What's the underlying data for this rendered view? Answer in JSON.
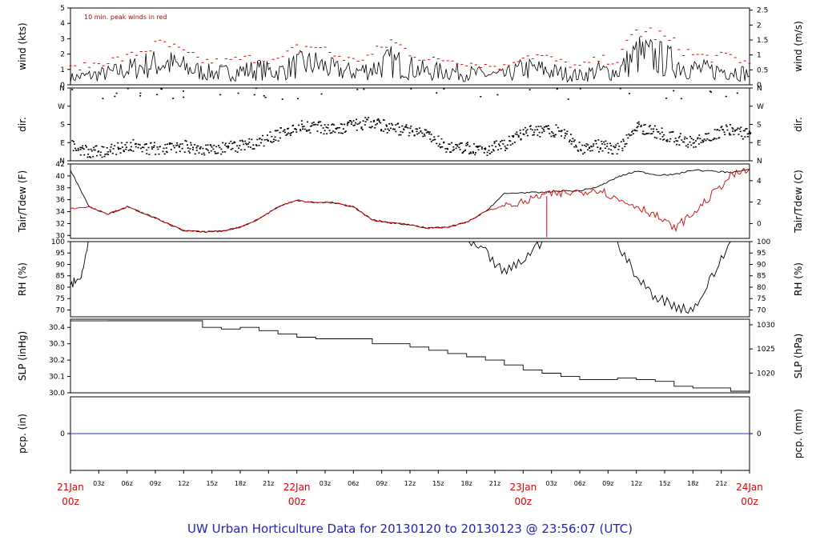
{
  "title": "UW Urban Horticulture Data for 20130120  to  20130123 @ 23:56:07  (UTC)",
  "colors": {
    "primary": "#000000",
    "peak": "#dd0000",
    "precip": "#2a2ad0",
    "title": "#2020c8",
    "date_label": "#e00000"
  },
  "x_axis": {
    "hours_ticks": [
      "03z",
      "06z",
      "09z",
      "12z",
      "15z",
      "18z",
      "21z",
      "03z",
      "06z",
      "09z",
      "12z",
      "15z",
      "18z",
      "21z",
      "03z",
      "06z",
      "09z",
      "12z",
      "15z",
      "18z",
      "21z"
    ],
    "date_labels": [
      {
        "day": "21Jan",
        "hour": "00z"
      },
      {
        "day": "22Jan",
        "hour": "00z"
      },
      {
        "day": "23Jan",
        "hour": "00z"
      },
      {
        "day": "24Jan",
        "hour": "00z"
      }
    ]
  },
  "chart_data": [
    {
      "type": "line",
      "name": "wind",
      "ylabel": "wind (kts)",
      "ylabel_right": "wind (m/s)",
      "ylim": [
        0,
        5
      ],
      "yticks": [
        "0",
        "1",
        "2",
        "3",
        "4",
        "5"
      ],
      "yticks_right": [
        "0",
        "0.5",
        "1",
        "1.5",
        "2",
        "2.5"
      ],
      "annotation": "10 min. peak winds in red",
      "x_hours": [
        0,
        2,
        4,
        6,
        8,
        10,
        12,
        14,
        16,
        18,
        20,
        22,
        24,
        26,
        28,
        30,
        32,
        34,
        36,
        38,
        40,
        42,
        44,
        46,
        48,
        50,
        52,
        54,
        56,
        58,
        60,
        62,
        64,
        66,
        68,
        70,
        72
      ],
      "series": [
        {
          "values": [
            0.6,
            0.8,
            1.0,
            1.3,
            1.7,
            1.9,
            1.5,
            1.1,
            1.0,
            1.2,
            1.3,
            1.1,
            1.7,
            1.8,
            1.3,
            1.1,
            1.4,
            2.0,
            1.5,
            1.1,
            1.2,
            1.0,
            0.9,
            0.8,
            1.4,
            1.3,
            1.0,
            0.8,
            1.2,
            1.1,
            2.6,
            2.4,
            1.9,
            1.4,
            1.2,
            1.3,
            0.9
          ]
        },
        {
          "values": [
            1.1,
            1.3,
            1.6,
            1.8,
            2.4,
            2.7,
            2.1,
            1.6,
            1.5,
            1.7,
            1.8,
            1.6,
            2.4,
            2.6,
            2.0,
            1.6,
            2.0,
            2.9,
            2.2,
            1.6,
            1.7,
            1.5,
            1.3,
            1.2,
            2.0,
            1.9,
            1.5,
            1.2,
            1.7,
            1.6,
            3.6,
            3.4,
            2.7,
            2.0,
            1.8,
            1.9,
            1.4
          ]
        }
      ]
    },
    {
      "type": "scatter",
      "name": "dir",
      "ylabel": "dir.",
      "ylabel_right": "dir.",
      "ylim": [
        0,
        360
      ],
      "yticks": [
        "N",
        "E",
        "S",
        "W",
        "N"
      ],
      "yticks_right": [
        "N",
        "E",
        "S",
        "W",
        "N"
      ],
      "x_hours": [
        0,
        2,
        4,
        6,
        8,
        10,
        12,
        14,
        16,
        18,
        20,
        22,
        24,
        26,
        28,
        30,
        32,
        34,
        36,
        38,
        40,
        42,
        44,
        46,
        48,
        50,
        52,
        54,
        56,
        58,
        60,
        62,
        64,
        66,
        68,
        70,
        72
      ],
      "series": [
        {
          "values": [
            70,
            40,
            50,
            80,
            60,
            60,
            70,
            55,
            60,
            75,
            95,
            130,
            170,
            165,
            150,
            175,
            190,
            160,
            150,
            120,
            60,
            60,
            55,
            80,
            140,
            150,
            145,
            60,
            75,
            55,
            170,
            140,
            110,
            90,
            130,
            160,
            120
          ]
        }
      ]
    },
    {
      "type": "line",
      "name": "temp",
      "ylabel": "Tair/Tdew (F)",
      "ylabel_right": "Tair/Tdew (C)",
      "ylim": [
        29.5,
        42
      ],
      "yticks": [
        "30",
        "32",
        "34",
        "36",
        "38",
        "40",
        "42"
      ],
      "yticks_right": [
        "0",
        "2",
        "4"
      ],
      "x_hours": [
        0,
        2,
        4,
        6,
        8,
        10,
        12,
        14,
        16,
        18,
        20,
        22,
        24,
        26,
        28,
        30,
        32,
        34,
        36,
        38,
        40,
        42,
        44,
        46,
        48,
        50,
        52,
        54,
        56,
        58,
        60,
        62,
        64,
        66,
        68,
        70,
        72
      ],
      "series": [
        {
          "values": [
            41.0,
            34.8,
            33.6,
            34.8,
            33.6,
            32.2,
            30.8,
            30.6,
            30.7,
            31.4,
            32.8,
            34.8,
            35.9,
            35.5,
            35.5,
            34.8,
            32.6,
            32.1,
            31.8,
            31.2,
            31.4,
            32.2,
            34.0,
            37.0,
            37.2,
            37.2,
            37.5,
            37.5,
            38.2,
            39.8,
            40.8,
            40.2,
            40.2,
            41.0,
            40.8,
            40.6,
            41.0
          ]
        },
        {
          "values": [
            34.5,
            34.8,
            33.6,
            34.8,
            33.6,
            32.2,
            30.8,
            30.6,
            30.7,
            31.4,
            32.8,
            34.8,
            35.9,
            35.5,
            35.5,
            34.8,
            32.6,
            32.1,
            31.8,
            31.2,
            31.4,
            32.2,
            34.0,
            35.0,
            35.5,
            36.8,
            37.0,
            37.3,
            37.8,
            36.0,
            35.0,
            33.4,
            31.2,
            33.6,
            36.8,
            40.0,
            41.0
          ]
        }
      ]
    },
    {
      "type": "line",
      "name": "rh",
      "ylabel": "RH (%)",
      "ylabel_right": "RH (%)",
      "ylim": [
        67,
        100
      ],
      "yticks": [
        "70",
        "75",
        "80",
        "85",
        "90",
        "95",
        "100"
      ],
      "yticks_right": [
        "70",
        "75",
        "80",
        "85",
        "90",
        "95",
        "100"
      ],
      "x_hours": [
        0,
        1,
        2,
        4,
        6,
        8,
        10,
        12,
        14,
        16,
        18,
        20,
        22,
        24,
        26,
        28,
        30,
        32,
        34,
        36,
        38,
        40,
        42,
        44,
        46,
        48,
        50,
        52,
        54,
        56,
        58,
        60,
        62,
        64,
        66,
        68,
        70,
        72
      ],
      "series": [
        {
          "values": [
            81,
            83,
            100,
            100,
            100,
            100,
            100,
            100,
            100,
            100,
            100,
            100,
            100,
            100,
            100,
            100,
            100,
            100,
            100,
            100,
            100,
            100,
            100,
            95,
            86,
            92,
            100,
            100,
            100,
            100,
            100,
            84,
            76,
            72,
            70,
            84,
            100,
            100
          ]
        }
      ]
    },
    {
      "type": "line",
      "name": "slp",
      "ylabel": "SLP (inHg)",
      "ylabel_right": "SLP (hPa)",
      "ylim": [
        30.0,
        30.45
      ],
      "yticks": [
        "30.0",
        "30.1",
        "30.2",
        "30.3",
        "30.4"
      ],
      "yticks_right": [
        "1020",
        "1025",
        "1030"
      ],
      "x_hours": [
        0,
        4,
        8,
        12,
        14,
        16,
        18,
        20,
        22,
        24,
        26,
        28,
        30,
        32,
        34,
        36,
        38,
        40,
        42,
        44,
        46,
        48,
        50,
        52,
        54,
        56,
        58,
        60,
        62,
        64,
        66,
        68,
        70,
        72
      ],
      "series": [
        {
          "values": [
            30.44,
            30.44,
            30.44,
            30.44,
            30.4,
            30.39,
            30.4,
            30.38,
            30.36,
            30.34,
            30.33,
            30.33,
            30.33,
            30.3,
            30.3,
            30.28,
            30.26,
            30.24,
            30.22,
            30.2,
            30.17,
            30.14,
            30.12,
            30.1,
            30.08,
            30.08,
            30.09,
            30.08,
            30.07,
            30.04,
            30.03,
            30.03,
            30.01,
            30.05
          ]
        }
      ]
    },
    {
      "type": "line",
      "name": "pcp",
      "ylabel": "pcp. (in)",
      "ylabel_right": "pcp. (mm)",
      "ylim": [
        -1,
        1
      ],
      "yticks": [
        "0"
      ],
      "yticks_right": [
        "0"
      ],
      "x_hours": [
        0,
        72
      ],
      "series": [
        {
          "values": [
            0,
            0
          ]
        }
      ]
    }
  ]
}
